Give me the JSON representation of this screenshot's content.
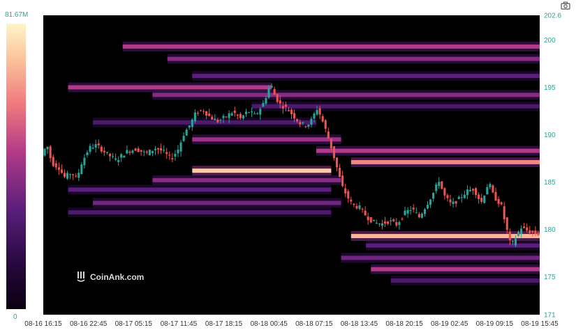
{
  "watermark": "CoinAnk.com",
  "camera_icon": "camera-icon",
  "colors": {
    "axis_text": "#26a69a",
    "up": "#26a69a",
    "down": "#ef5350",
    "background": "#000000"
  },
  "chart_data": {
    "type": "heatmap",
    "title": "",
    "xlabel": "",
    "ylabel": "",
    "ylim": [
      171,
      202.6
    ],
    "y_ticks": [
      "202.6",
      "200",
      "195",
      "190",
      "185",
      "180",
      "175",
      "171"
    ],
    "x_ticks": [
      "08-16 16:15",
      "08-16 22:45",
      "08-17 05:15",
      "08-17 11:45",
      "08-17 18:15",
      "08-18 00:45",
      "08-18 07:15",
      "08-18 13:45",
      "08-18 20:15",
      "08-19 02:45",
      "08-19 09:15",
      "08-19 15:45"
    ],
    "colorbar": {
      "max_label": "81.67M",
      "min_label": "0",
      "max": 81.67,
      "min": 0,
      "unit": "M"
    },
    "liquidity_bands": [
      {
        "price": 199.3,
        "start": 0.16,
        "end": 1.0,
        "intensity": 0.55
      },
      {
        "price": 198.0,
        "start": 0.25,
        "end": 1.0,
        "intensity": 0.45
      },
      {
        "price": 196.2,
        "start": 0.3,
        "end": 1.0,
        "intensity": 0.35
      },
      {
        "price": 195.0,
        "start": 0.05,
        "end": 0.46,
        "intensity": 0.55
      },
      {
        "price": 194.2,
        "start": 0.22,
        "end": 1.0,
        "intensity": 0.45
      },
      {
        "price": 193.0,
        "start": 0.42,
        "end": 1.0,
        "intensity": 0.3
      },
      {
        "price": 191.3,
        "start": 0.1,
        "end": 0.55,
        "intensity": 0.3
      },
      {
        "price": 189.5,
        "start": 0.3,
        "end": 0.6,
        "intensity": 0.5
      },
      {
        "price": 188.3,
        "start": 0.55,
        "end": 1.0,
        "intensity": 0.55
      },
      {
        "price": 187.1,
        "start": 0.62,
        "end": 1.0,
        "intensity": 0.75
      },
      {
        "price": 186.2,
        "start": 0.3,
        "end": 0.58,
        "intensity": 0.9
      },
      {
        "price": 185.2,
        "start": 0.22,
        "end": 0.6,
        "intensity": 0.45
      },
      {
        "price": 184.2,
        "start": 0.05,
        "end": 0.58,
        "intensity": 0.35
      },
      {
        "price": 182.8,
        "start": 0.1,
        "end": 0.6,
        "intensity": 0.4
      },
      {
        "price": 181.8,
        "start": 0.05,
        "end": 0.58,
        "intensity": 0.3
      },
      {
        "price": 179.3,
        "start": 0.62,
        "end": 1.0,
        "intensity": 0.85
      },
      {
        "price": 178.3,
        "start": 0.65,
        "end": 1.0,
        "intensity": 0.35
      },
      {
        "price": 177.0,
        "start": 0.6,
        "end": 1.0,
        "intensity": 0.4
      },
      {
        "price": 175.8,
        "start": 0.66,
        "end": 1.0,
        "intensity": 0.55
      },
      {
        "price": 174.6,
        "start": 0.7,
        "end": 1.0,
        "intensity": 0.3
      }
    ],
    "price_path": [
      [
        0.0,
        187.8
      ],
      [
        0.01,
        189.0
      ],
      [
        0.02,
        187.0
      ],
      [
        0.035,
        186.5
      ],
      [
        0.045,
        185.5
      ],
      [
        0.06,
        186.0
      ],
      [
        0.07,
        185.3
      ],
      [
        0.08,
        187.0
      ],
      [
        0.095,
        188.6
      ],
      [
        0.11,
        188.9
      ],
      [
        0.13,
        188.0
      ],
      [
        0.15,
        187.3
      ],
      [
        0.17,
        188.2
      ],
      [
        0.19,
        188.5
      ],
      [
        0.21,
        188.0
      ],
      [
        0.23,
        188.6
      ],
      [
        0.245,
        188.2
      ],
      [
        0.26,
        187.4
      ],
      [
        0.275,
        188.5
      ],
      [
        0.285,
        190.0
      ],
      [
        0.3,
        191.2
      ],
      [
        0.31,
        192.3
      ],
      [
        0.325,
        192.6
      ],
      [
        0.34,
        191.8
      ],
      [
        0.355,
        191.4
      ],
      [
        0.37,
        191.9
      ],
      [
        0.385,
        192.4
      ],
      [
        0.4,
        191.7
      ],
      [
        0.415,
        192.5
      ],
      [
        0.43,
        192.0
      ],
      [
        0.445,
        193.2
      ],
      [
        0.455,
        194.5
      ],
      [
        0.46,
        195.5
      ],
      [
        0.47,
        194.0
      ],
      [
        0.48,
        193.2
      ],
      [
        0.495,
        192.7
      ],
      [
        0.51,
        191.8
      ],
      [
        0.52,
        191.2
      ],
      [
        0.53,
        191.0
      ],
      [
        0.54,
        191.2
      ],
      [
        0.55,
        192.3
      ],
      [
        0.555,
        192.8
      ],
      [
        0.565,
        191.5
      ],
      [
        0.575,
        190.0
      ],
      [
        0.585,
        188.3
      ],
      [
        0.595,
        186.4
      ],
      [
        0.605,
        184.5
      ],
      [
        0.615,
        183.5
      ],
      [
        0.625,
        182.6
      ],
      [
        0.64,
        182.3
      ],
      [
        0.655,
        181.3
      ],
      [
        0.67,
        180.7
      ],
      [
        0.685,
        180.6
      ],
      [
        0.7,
        180.9
      ],
      [
        0.715,
        180.5
      ],
      [
        0.73,
        181.7
      ],
      [
        0.745,
        182.2
      ],
      [
        0.76,
        181.3
      ],
      [
        0.775,
        182.6
      ],
      [
        0.79,
        184.0
      ],
      [
        0.8,
        185.2
      ],
      [
        0.81,
        183.6
      ],
      [
        0.825,
        182.6
      ],
      [
        0.84,
        183.2
      ],
      [
        0.855,
        184.0
      ],
      [
        0.87,
        184.3
      ],
      [
        0.885,
        182.8
      ],
      [
        0.9,
        185.0
      ],
      [
        0.91,
        183.5
      ],
      [
        0.925,
        182.6
      ],
      [
        0.935,
        180.3
      ],
      [
        0.945,
        178.2
      ],
      [
        0.955,
        179.2
      ],
      [
        0.965,
        180.2
      ],
      [
        0.98,
        179.8
      ],
      [
        1.0,
        179.5
      ]
    ]
  }
}
